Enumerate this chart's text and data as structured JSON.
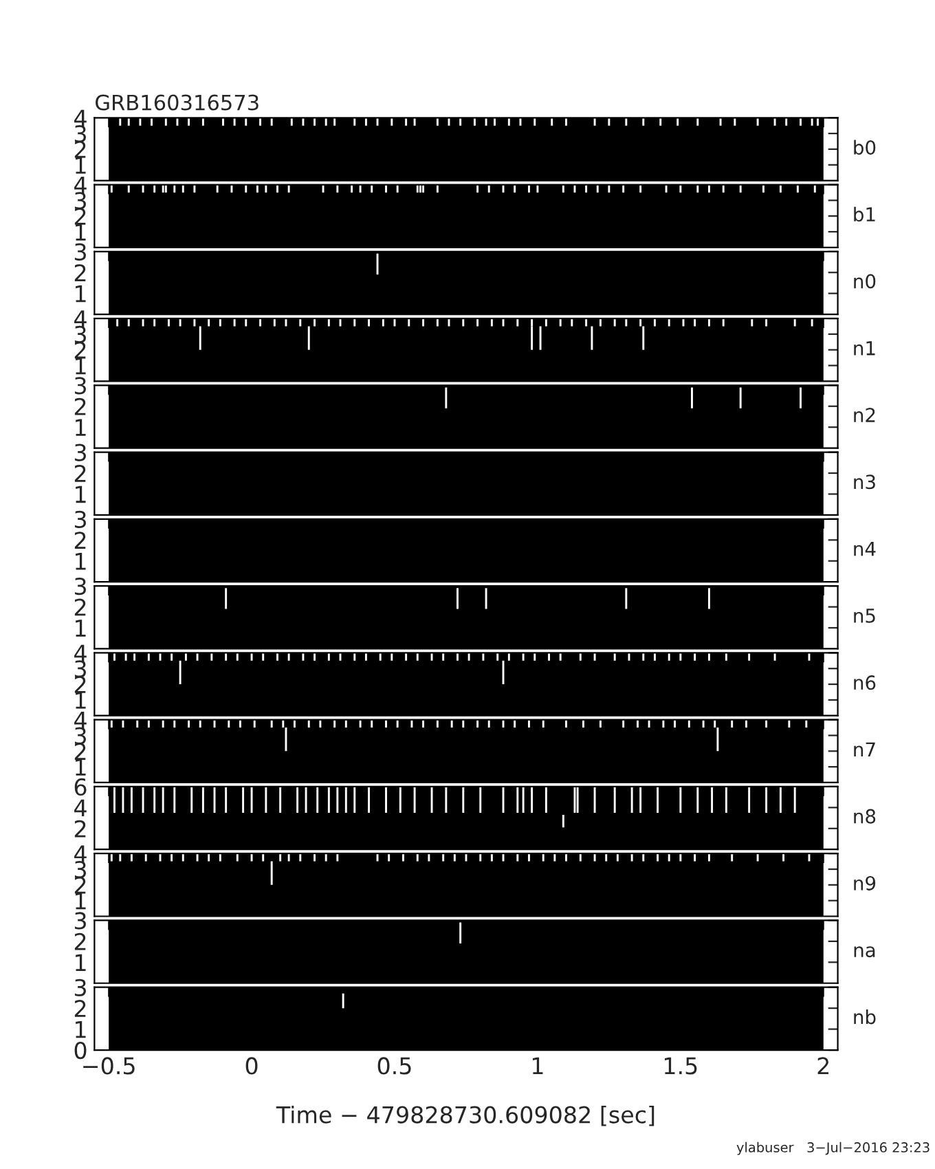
{
  "chart_data": [
    {
      "type": "bar",
      "title": "GRB160316573",
      "ylabel": "b0",
      "xlim": [
        -0.55,
        2.05
      ],
      "xticks": [
        -0.5,
        0,
        0.5,
        1,
        1.5,
        2
      ],
      "ylim": [
        0,
        4
      ],
      "yticks": [
        1,
        2,
        3,
        4
      ],
      "tick_labels": "y",
      "bands": [
        {
          "axis": "x",
          "from": -0.5,
          "to": 2,
          "color": "#000000"
        }
      ],
      "series": [
        {
          "color": "#ffffff",
          "x": [
            -0.46,
            -0.43,
            -0.39,
            -0.35,
            -0.3,
            -0.26,
            -0.22,
            -0.17,
            -0.1,
            -0.06,
            -0.02,
            0.03,
            0.07,
            0.14,
            0.18,
            0.22,
            0.26,
            0.29,
            0.36,
            0.4,
            0.44,
            0.49,
            0.54,
            0.57,
            0.65,
            0.69,
            0.73,
            0.78,
            0.82,
            0.85,
            0.9,
            0.94,
            0.99,
            1.05,
            1.1,
            1.2,
            1.25,
            1.31,
            1.37,
            1.43,
            1.49,
            1.56,
            1.64,
            1.69,
            1.77,
            1.83,
            1.87,
            1.92,
            1.96,
            1.98
          ],
          "base": [
            3.5,
            3.5,
            3.5,
            3.5,
            3.5,
            3.5,
            3.5,
            3.5,
            3.5,
            3.5,
            3.5,
            3.5,
            3.5,
            3.5,
            3.5,
            3.5,
            3.5,
            3.5,
            3.5,
            3.5,
            3.5,
            3.5,
            3.5,
            3.5,
            3.5,
            3.5,
            3.5,
            3.5,
            3.5,
            3.5,
            3.5,
            3.5,
            3.5,
            3.5,
            3.5,
            3.5,
            3.5,
            3.5,
            3.5,
            3.5,
            3.5,
            3.5,
            3.5,
            3.5,
            3.5,
            3.5,
            3.5,
            3.5,
            3.5,
            3.5
          ],
          "values": [
            0.5,
            0.5,
            0.5,
            0.5,
            0.5,
            0.5,
            0.5,
            0.5,
            0.5,
            0.5,
            0.5,
            0.5,
            0.5,
            0.5,
            0.5,
            0.5,
            0.5,
            0.5,
            0.5,
            0.5,
            0.5,
            0.5,
            0.5,
            0.5,
            0.5,
            0.5,
            0.5,
            0.5,
            0.5,
            0.5,
            0.5,
            0.5,
            0.5,
            0.5,
            0.5,
            0.5,
            0.5,
            0.5,
            0.5,
            0.5,
            0.5,
            0.5,
            0.5,
            0.5,
            0.5,
            0.5,
            0.5,
            0.5,
            0.5,
            0.5
          ]
        }
      ]
    },
    {
      "type": "bar",
      "ylabel": "b1",
      "xlim": [
        -0.55,
        2.05
      ],
      "xticks": [
        -0.5,
        0,
        0.5,
        1,
        1.5,
        2
      ],
      "ylim": [
        0,
        4
      ],
      "yticks": [
        1,
        2,
        3,
        4
      ],
      "tick_labels": "y",
      "bands": [
        {
          "axis": "x",
          "from": -0.5,
          "to": 2,
          "color": "#000000"
        }
      ],
      "series": [
        {
          "color": "#ffffff",
          "x": [
            -0.49,
            -0.43,
            -0.38,
            -0.34,
            -0.31,
            -0.3,
            -0.27,
            -0.24,
            -0.2,
            -0.12,
            -0.07,
            -0.02,
            0.02,
            0.05,
            0.09,
            0.13,
            0.25,
            0.3,
            0.35,
            0.38,
            0.42,
            0.47,
            0.51,
            0.58,
            0.59,
            0.6,
            0.65,
            0.79,
            0.83,
            0.88,
            0.92,
            0.97,
            1.0,
            1.09,
            1.13,
            1.17,
            1.21,
            1.25,
            1.3,
            1.36,
            1.45,
            1.5,
            1.56,
            1.6,
            1.65,
            1.71,
            1.79,
            1.85,
            1.91,
            1.97
          ],
          "base": [
            3.5,
            3.5,
            3.5,
            3.5,
            3.5,
            3.5,
            3.5,
            3.5,
            3.5,
            3.5,
            3.5,
            3.5,
            3.5,
            3.5,
            3.5,
            3.5,
            3.5,
            3.5,
            3.5,
            3.5,
            3.5,
            3.5,
            3.5,
            3.5,
            3.5,
            3.5,
            3.5,
            3.5,
            3.5,
            3.5,
            3.5,
            3.5,
            3.5,
            3.5,
            3.5,
            3.5,
            3.5,
            3.5,
            3.5,
            3.5,
            3.5,
            3.5,
            3.5,
            3.5,
            3.5,
            3.5,
            3.5,
            3.5,
            3.5,
            3.5
          ],
          "values": [
            0.5,
            0.5,
            0.5,
            0.5,
            0.5,
            0.5,
            0.5,
            0.5,
            0.5,
            0.5,
            0.5,
            0.5,
            0.5,
            0.5,
            0.5,
            0.5,
            0.5,
            0.5,
            0.5,
            0.5,
            0.5,
            0.5,
            0.5,
            0.5,
            0.5,
            0.5,
            0.5,
            0.5,
            0.5,
            0.5,
            0.5,
            0.5,
            0.5,
            0.5,
            0.5,
            0.5,
            0.5,
            0.5,
            0.5,
            0.5,
            0.5,
            0.5,
            0.5,
            0.5,
            0.5,
            0.5,
            0.5,
            0.5,
            0.5,
            0.5
          ]
        }
      ]
    },
    {
      "type": "bar",
      "ylabel": "n0",
      "xlim": [
        -0.55,
        2.05
      ],
      "xticks": [
        -0.5,
        0,
        0.5,
        1,
        1.5,
        2
      ],
      "ylim": [
        0,
        3
      ],
      "yticks": [
        1,
        2,
        3
      ],
      "tick_labels": "y",
      "bands": [
        {
          "axis": "x",
          "from": -0.5,
          "to": 2,
          "color": "#000000"
        }
      ],
      "series": [
        {
          "color": "#ffffff",
          "x": [
            0.44
          ],
          "base": [
            1.9
          ],
          "values": [
            1.0
          ]
        }
      ]
    },
    {
      "type": "bar",
      "ylabel": "n1",
      "xlim": [
        -0.55,
        2.05
      ],
      "xticks": [
        -0.5,
        0,
        0.5,
        1,
        1.5,
        2
      ],
      "ylim": [
        0,
        4
      ],
      "yticks": [
        1,
        2,
        3,
        4
      ],
      "tick_labels": "y",
      "bands": [
        {
          "axis": "x",
          "from": -0.5,
          "to": 2,
          "color": "#000000"
        }
      ],
      "series": [
        {
          "color": "#ffffff",
          "x": [
            -0.47,
            -0.43,
            -0.38,
            -0.34,
            -0.29,
            -0.25,
            -0.2,
            -0.15,
            -0.11,
            -0.06,
            -0.02,
            0.03,
            0.08,
            0.12,
            0.17,
            0.22,
            0.27,
            0.31,
            0.36,
            0.41,
            0.46,
            0.5,
            0.55,
            0.6,
            0.65,
            0.69,
            0.74,
            0.79,
            0.84,
            0.88,
            0.93,
            0.98,
            1.03,
            1.08,
            1.12,
            1.17,
            1.22,
            1.27,
            1.31,
            1.36,
            1.41,
            1.46,
            1.51,
            1.55,
            1.6,
            1.65,
            1.75,
            1.8,
            1.9,
            1.96
          ],
          "base": [
            3.5,
            3.5,
            3.5,
            3.5,
            3.5,
            3.5,
            3.5,
            3.5,
            3.5,
            3.5,
            3.5,
            3.5,
            3.5,
            3.5,
            3.5,
            3.5,
            3.5,
            3.5,
            3.5,
            3.5,
            3.5,
            3.5,
            3.5,
            3.5,
            3.5,
            3.5,
            3.5,
            3.5,
            3.5,
            3.5,
            3.5,
            3.5,
            3.5,
            3.5,
            3.5,
            3.5,
            3.5,
            3.5,
            3.5,
            3.5,
            3.5,
            3.5,
            3.5,
            3.5,
            3.5,
            3.5,
            3.5,
            3.5,
            3.5,
            3.5
          ],
          "values": [
            0.5,
            0.5,
            0.5,
            0.5,
            0.5,
            0.5,
            0.5,
            0.5,
            0.5,
            0.5,
            0.5,
            0.5,
            0.5,
            0.5,
            0.5,
            0.5,
            0.5,
            0.5,
            0.5,
            0.5,
            0.5,
            0.5,
            0.5,
            0.5,
            0.5,
            0.5,
            0.5,
            0.5,
            0.5,
            0.5,
            0.5,
            0.5,
            0.5,
            0.5,
            0.5,
            0.5,
            0.5,
            0.5,
            0.5,
            0.5,
            0.5,
            0.5,
            0.5,
            0.5,
            0.5,
            0.5,
            0.5,
            0.5,
            0.5,
            0.5
          ]
        },
        {
          "color": "#ffffff",
          "x": [
            -0.18,
            0.2,
            0.98,
            1.01,
            1.19,
            1.37
          ],
          "base": [
            2.0,
            2.0,
            2.0,
            2.0,
            2.0,
            2.0
          ],
          "values": [
            1.5,
            1.5,
            1.5,
            1.5,
            1.5,
            1.5
          ]
        }
      ]
    },
    {
      "type": "bar",
      "ylabel": "n2",
      "xlim": [
        -0.55,
        2.05
      ],
      "xticks": [
        -0.5,
        0,
        0.5,
        1,
        1.5,
        2
      ],
      "ylim": [
        0,
        3
      ],
      "yticks": [
        1,
        2,
        3
      ],
      "tick_labels": "y",
      "bands": [
        {
          "axis": "x",
          "from": -0.5,
          "to": 2,
          "color": "#000000"
        }
      ],
      "series": [
        {
          "color": "#ffffff",
          "x": [
            0.68,
            1.54,
            1.71,
            1.92
          ],
          "base": [
            1.9,
            1.9,
            1.9,
            1.9
          ],
          "values": [
            1.0,
            1.0,
            1.0,
            1.0
          ]
        }
      ]
    },
    {
      "type": "bar",
      "ylabel": "n3",
      "xlim": [
        -0.55,
        2.05
      ],
      "xticks": [
        -0.5,
        0,
        0.5,
        1,
        1.5,
        2
      ],
      "ylim": [
        0,
        3
      ],
      "yticks": [
        1,
        2,
        3
      ],
      "tick_labels": "y",
      "bands": [
        {
          "axis": "x",
          "from": -0.5,
          "to": 2,
          "color": "#000000"
        }
      ]
    },
    {
      "type": "bar",
      "ylabel": "n4",
      "xlim": [
        -0.55,
        2.05
      ],
      "xticks": [
        -0.5,
        0,
        0.5,
        1,
        1.5,
        2
      ],
      "ylim": [
        0,
        3
      ],
      "yticks": [
        1,
        2,
        3
      ],
      "tick_labels": "y",
      "bands": [
        {
          "axis": "x",
          "from": -0.5,
          "to": 2,
          "color": "#000000"
        }
      ]
    },
    {
      "type": "bar",
      "ylabel": "n5",
      "xlim": [
        -0.55,
        2.05
      ],
      "xticks": [
        -0.5,
        0,
        0.5,
        1,
        1.5,
        2
      ],
      "ylim": [
        0,
        3
      ],
      "yticks": [
        1,
        2,
        3
      ],
      "tick_labels": "y",
      "bands": [
        {
          "axis": "x",
          "from": -0.5,
          "to": 2,
          "color": "#000000"
        }
      ],
      "series": [
        {
          "color": "#ffffff",
          "x": [
            -0.09,
            0.72,
            0.82,
            1.31,
            1.6
          ],
          "base": [
            1.9,
            1.9,
            1.9,
            1.9,
            1.9
          ],
          "values": [
            1.0,
            1.0,
            1.0,
            1.0,
            1.0
          ]
        }
      ]
    },
    {
      "type": "bar",
      "ylabel": "n6",
      "xlim": [
        -0.55,
        2.05
      ],
      "xticks": [
        -0.5,
        0,
        0.5,
        1,
        1.5,
        2
      ],
      "ylim": [
        0,
        4
      ],
      "yticks": [
        1,
        2,
        3,
        4
      ],
      "tick_labels": "y",
      "bands": [
        {
          "axis": "x",
          "from": -0.5,
          "to": 2,
          "color": "#000000"
        }
      ],
      "series": [
        {
          "color": "#ffffff",
          "x": [
            -0.48,
            -0.44,
            -0.41,
            -0.36,
            -0.32,
            -0.28,
            -0.23,
            -0.19,
            -0.14,
            -0.09,
            -0.05,
            0.0,
            0.04,
            0.09,
            0.13,
            0.18,
            0.22,
            0.27,
            0.31,
            0.36,
            0.4,
            0.45,
            0.49,
            0.54,
            0.58,
            0.63,
            0.67,
            0.72,
            0.76,
            0.81,
            0.86,
            0.9,
            0.95,
            0.99,
            1.04,
            1.08,
            1.15,
            1.2,
            1.27,
            1.32,
            1.37,
            1.41,
            1.46,
            1.5,
            1.55,
            1.6,
            1.66,
            1.74,
            1.83,
            1.95
          ],
          "base": [
            3.5,
            3.5,
            3.5,
            3.5,
            3.5,
            3.5,
            3.5,
            3.5,
            3.5,
            3.5,
            3.5,
            3.5,
            3.5,
            3.5,
            3.5,
            3.5,
            3.5,
            3.5,
            3.5,
            3.5,
            3.5,
            3.5,
            3.5,
            3.5,
            3.5,
            3.5,
            3.5,
            3.5,
            3.5,
            3.5,
            3.5,
            3.5,
            3.5,
            3.5,
            3.5,
            3.5,
            3.5,
            3.5,
            3.5,
            3.5,
            3.5,
            3.5,
            3.5,
            3.5,
            3.5,
            3.5,
            3.5,
            3.5,
            3.5,
            3.5
          ],
          "values": [
            0.5,
            0.5,
            0.5,
            0.5,
            0.5,
            0.5,
            0.5,
            0.5,
            0.5,
            0.5,
            0.5,
            0.5,
            0.5,
            0.5,
            0.5,
            0.5,
            0.5,
            0.5,
            0.5,
            0.5,
            0.5,
            0.5,
            0.5,
            0.5,
            0.5,
            0.5,
            0.5,
            0.5,
            0.5,
            0.5,
            0.5,
            0.5,
            0.5,
            0.5,
            0.5,
            0.5,
            0.5,
            0.5,
            0.5,
            0.5,
            0.5,
            0.5,
            0.5,
            0.5,
            0.5,
            0.5,
            0.5,
            0.5,
            0.5,
            0.5
          ]
        },
        {
          "color": "#ffffff",
          "x": [
            -0.25,
            0.88
          ],
          "base": [
            2.0,
            2.0
          ],
          "values": [
            1.5,
            1.5
          ]
        }
      ]
    },
    {
      "type": "bar",
      "ylabel": "n7",
      "xlim": [
        -0.55,
        2.05
      ],
      "xticks": [
        -0.5,
        0,
        0.5,
        1,
        1.5,
        2
      ],
      "ylim": [
        0,
        4
      ],
      "yticks": [
        1,
        2,
        3,
        4
      ],
      "tick_labels": "y",
      "bands": [
        {
          "axis": "x",
          "from": -0.5,
          "to": 2,
          "color": "#000000"
        }
      ],
      "series": [
        {
          "color": "#ffffff",
          "x": [
            -0.49,
            -0.45,
            -0.4,
            -0.36,
            -0.31,
            -0.27,
            -0.22,
            -0.18,
            -0.13,
            -0.08,
            -0.04,
            0.01,
            0.07,
            0.11,
            0.15,
            0.2,
            0.24,
            0.29,
            0.33,
            0.38,
            0.42,
            0.47,
            0.51,
            0.56,
            0.6,
            0.65,
            0.7,
            0.74,
            0.79,
            0.83,
            0.88,
            0.92,
            0.97,
            1.02,
            1.1,
            1.16,
            1.22,
            1.3,
            1.35,
            1.39,
            1.44,
            1.48,
            1.53,
            1.58,
            1.62,
            1.68,
            1.73,
            1.8,
            1.88,
            1.94
          ],
          "base": [
            3.5,
            3.5,
            3.5,
            3.5,
            3.5,
            3.5,
            3.5,
            3.5,
            3.5,
            3.5,
            3.5,
            3.5,
            3.5,
            3.5,
            3.5,
            3.5,
            3.5,
            3.5,
            3.5,
            3.5,
            3.5,
            3.5,
            3.5,
            3.5,
            3.5,
            3.5,
            3.5,
            3.5,
            3.5,
            3.5,
            3.5,
            3.5,
            3.5,
            3.5,
            3.5,
            3.5,
            3.5,
            3.5,
            3.5,
            3.5,
            3.5,
            3.5,
            3.5,
            3.5,
            3.5,
            3.5,
            3.5,
            3.5,
            3.5,
            3.5
          ],
          "values": [
            0.5,
            0.5,
            0.5,
            0.5,
            0.5,
            0.5,
            0.5,
            0.5,
            0.5,
            0.5,
            0.5,
            0.5,
            0.5,
            0.5,
            0.5,
            0.5,
            0.5,
            0.5,
            0.5,
            0.5,
            0.5,
            0.5,
            0.5,
            0.5,
            0.5,
            0.5,
            0.5,
            0.5,
            0.5,
            0.5,
            0.5,
            0.5,
            0.5,
            0.5,
            0.5,
            0.5,
            0.5,
            0.5,
            0.5,
            0.5,
            0.5,
            0.5,
            0.5,
            0.5,
            0.5,
            0.5,
            0.5,
            0.5,
            0.5,
            0.5
          ]
        },
        {
          "color": "#ffffff",
          "x": [
            0.12,
            1.63
          ],
          "base": [
            2.0,
            2.0
          ],
          "values": [
            1.5,
            1.5
          ]
        }
      ]
    },
    {
      "type": "bar",
      "ylabel": "n8",
      "xlim": [
        -0.55,
        2.05
      ],
      "xticks": [
        -0.5,
        0,
        0.5,
        1,
        1.5,
        2
      ],
      "ylim": [
        0,
        6
      ],
      "yticks": [
        2,
        4,
        6
      ],
      "tick_labels": "y",
      "bands": [
        {
          "axis": "x",
          "from": -0.5,
          "to": 2,
          "color": "#000000"
        }
      ],
      "series": [
        {
          "color": "#ffffff",
          "x": [
            -0.48,
            -0.45,
            -0.42,
            -0.38,
            -0.34,
            -0.31,
            -0.27,
            -0.21,
            -0.17,
            -0.13,
            -0.09,
            -0.03,
            0.0,
            0.05,
            0.1,
            0.16,
            0.19,
            0.23,
            0.27,
            0.3,
            0.33,
            0.36,
            0.41,
            0.47,
            0.52,
            0.57,
            0.63,
            0.68,
            0.74,
            0.8,
            0.88,
            0.93,
            0.95,
            0.98,
            1.03,
            1.13,
            1.14,
            1.2,
            1.27,
            1.33,
            1.36,
            1.42,
            1.5,
            1.56,
            1.61,
            1.66,
            1.74,
            1.8,
            1.85,
            1.9
          ],
          "base": [
            3.5,
            3.5,
            3.5,
            3.5,
            3.5,
            3.5,
            3.5,
            3.5,
            3.5,
            3.5,
            3.5,
            3.5,
            3.5,
            3.5,
            3.5,
            3.5,
            3.5,
            3.5,
            3.5,
            3.5,
            3.5,
            3.5,
            3.5,
            3.5,
            3.5,
            3.5,
            3.5,
            3.5,
            3.5,
            3.5,
            3.5,
            3.5,
            3.5,
            3.5,
            3.5,
            3.5,
            3.5,
            3.5,
            3.5,
            3.5,
            3.5,
            3.5,
            3.5,
            3.5,
            3.5,
            3.5,
            3.5,
            3.5,
            3.5,
            3.5
          ],
          "values": [
            2.5,
            2.5,
            2.5,
            2.5,
            2.5,
            2.5,
            2.5,
            2.5,
            2.5,
            2.5,
            2.5,
            2.5,
            2.5,
            2.5,
            2.5,
            2.5,
            2.5,
            2.5,
            2.5,
            2.5,
            2.5,
            2.5,
            2.5,
            2.5,
            2.5,
            2.5,
            2.5,
            2.5,
            2.5,
            2.5,
            2.5,
            2.5,
            2.5,
            2.5,
            2.5,
            2.5,
            2.5,
            2.5,
            2.5,
            2.5,
            2.5,
            2.5,
            2.5,
            2.5,
            2.5,
            2.5,
            2.5,
            2.5,
            2.5,
            2.5
          ]
        },
        {
          "color": "#ffffff",
          "x": [
            1.09
          ],
          "base": [
            2.1
          ],
          "values": [
            1.2
          ]
        }
      ]
    },
    {
      "type": "bar",
      "ylabel": "n9",
      "xlim": [
        -0.55,
        2.05
      ],
      "xticks": [
        -0.5,
        0,
        0.5,
        1,
        1.5,
        2
      ],
      "ylim": [
        0,
        4
      ],
      "yticks": [
        1,
        2,
        3,
        4
      ],
      "tick_labels": "y",
      "bands": [
        {
          "axis": "x",
          "from": -0.5,
          "to": 2,
          "color": "#000000"
        }
      ],
      "series": [
        {
          "color": "#ffffff",
          "x": [
            -0.49,
            -0.46,
            -0.42,
            -0.37,
            -0.32,
            -0.28,
            -0.24,
            -0.19,
            -0.15,
            -0.11,
            -0.05,
            0.0,
            0.04,
            0.1,
            0.13,
            0.17,
            0.22,
            0.26,
            0.3,
            0.44,
            0.48,
            0.53,
            0.58,
            0.62,
            0.67,
            0.71,
            0.75,
            0.8,
            0.84,
            0.88,
            0.93,
            0.97,
            1.02,
            1.06,
            1.1,
            1.15,
            1.2,
            1.24,
            1.28,
            1.33,
            1.37,
            1.42,
            1.46,
            1.5,
            1.55,
            1.6,
            1.68,
            1.77,
            1.86,
            1.95
          ],
          "base": [
            3.5,
            3.5,
            3.5,
            3.5,
            3.5,
            3.5,
            3.5,
            3.5,
            3.5,
            3.5,
            3.5,
            3.5,
            3.5,
            3.5,
            3.5,
            3.5,
            3.5,
            3.5,
            3.5,
            3.5,
            3.5,
            3.5,
            3.5,
            3.5,
            3.5,
            3.5,
            3.5,
            3.5,
            3.5,
            3.5,
            3.5,
            3.5,
            3.5,
            3.5,
            3.5,
            3.5,
            3.5,
            3.5,
            3.5,
            3.5,
            3.5,
            3.5,
            3.5,
            3.5,
            3.5,
            3.5,
            3.5,
            3.5,
            3.5,
            3.5
          ],
          "values": [
            0.5,
            0.5,
            0.5,
            0.5,
            0.5,
            0.5,
            0.5,
            0.5,
            0.5,
            0.5,
            0.5,
            0.5,
            0.5,
            0.5,
            0.5,
            0.5,
            0.5,
            0.5,
            0.5,
            0.5,
            0.5,
            0.5,
            0.5,
            0.5,
            0.5,
            0.5,
            0.5,
            0.5,
            0.5,
            0.5,
            0.5,
            0.5,
            0.5,
            0.5,
            0.5,
            0.5,
            0.5,
            0.5,
            0.5,
            0.5,
            0.5,
            0.5,
            0.5,
            0.5,
            0.5,
            0.5,
            0.5,
            0.5,
            0.5,
            0.5
          ]
        },
        {
          "color": "#ffffff",
          "x": [
            0.07
          ],
          "base": [
            2.0
          ],
          "values": [
            1.5
          ]
        }
      ]
    },
    {
      "type": "bar",
      "ylabel": "na",
      "xlim": [
        -0.55,
        2.05
      ],
      "xticks": [
        -0.5,
        0,
        0.5,
        1,
        1.5,
        2
      ],
      "ylim": [
        0,
        3
      ],
      "yticks": [
        1,
        2,
        3
      ],
      "tick_labels": "y",
      "bands": [
        {
          "axis": "x",
          "from": -0.5,
          "to": 2,
          "color": "#000000"
        }
      ],
      "series": [
        {
          "color": "#ffffff",
          "x": [
            0.73
          ],
          "base": [
            1.9
          ],
          "values": [
            1.0
          ]
        }
      ]
    },
    {
      "type": "bar",
      "ylabel": "nb",
      "xlabel": "Time − 479828730.609082 [sec]",
      "xlim": [
        -0.55,
        2.05
      ],
      "xticks": [
        {
          "value": -0.5,
          "label": "−0.5"
        },
        0,
        0.5,
        1,
        1.5,
        2
      ],
      "ylim": [
        0,
        3
      ],
      "yticks": [
        0,
        1,
        2,
        3
      ],
      "bands": [
        {
          "axis": "x",
          "from": -0.5,
          "to": 2,
          "color": "#000000"
        }
      ],
      "annotations": [
        "ylabuser   3−Jul−2016 23:23"
      ],
      "series": [
        {
          "color": "#ffffff",
          "x": [
            0.32
          ],
          "base": [
            2.0
          ],
          "values": [
            0.7
          ]
        }
      ]
    }
  ]
}
